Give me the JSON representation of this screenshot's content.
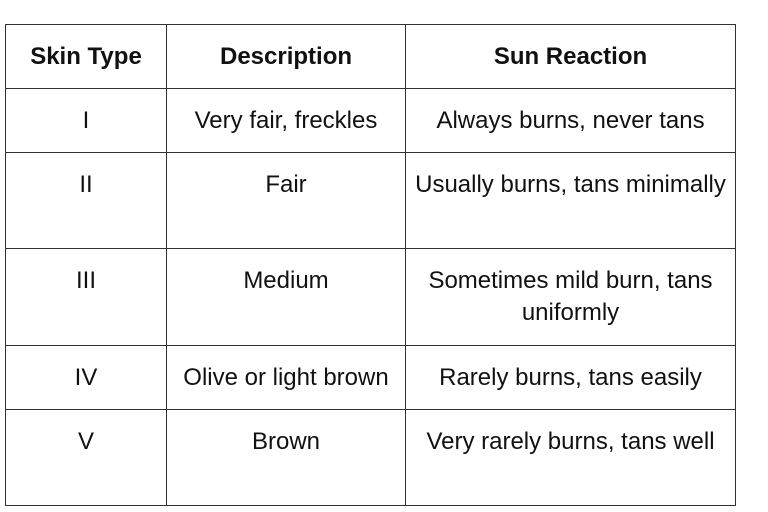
{
  "table": {
    "headers": [
      "Skin Type",
      "Description",
      "Sun Reaction"
    ],
    "rows": [
      [
        "I",
        "Very fair, freckles",
        "Always burns, never tans"
      ],
      [
        "II",
        "Fair",
        "Usually burns, tans minimally"
      ],
      [
        "III",
        "Medium",
        "Sometimes mild burn, tans uniformly"
      ],
      [
        "IV",
        "Olive or light brown",
        "Rarely burns, tans easily"
      ],
      [
        "V",
        "Brown",
        "Very rarely burns, tans well"
      ]
    ]
  }
}
